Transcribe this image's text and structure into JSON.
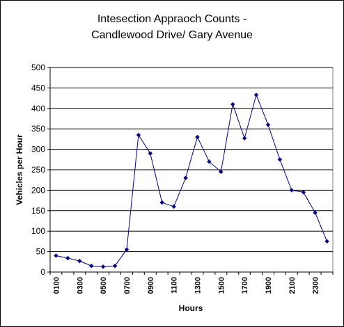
{
  "chart_data": {
    "type": "line",
    "title": [
      "Intesection Appraoch Counts -",
      "Candlewood Drive/ Gary Avenue"
    ],
    "xlabel": "Hours",
    "ylabel": "Vehicles per Hour",
    "ylim": [
      0,
      500
    ],
    "y_ticks": [
      "0",
      "50",
      "100",
      "150",
      "200",
      "250",
      "300",
      "350",
      "400",
      "450",
      "500"
    ],
    "x_tick_labels": [
      "0100",
      "0300",
      "0500",
      "0700",
      "0900",
      "1100",
      "1300",
      "1500",
      "1700",
      "1900",
      "2100",
      "2300"
    ],
    "grid": "horizontal",
    "legend": "none",
    "series": [
      {
        "color": "#000080",
        "x": [
          "0100",
          "0200",
          "0300",
          "0400",
          "0500",
          "0600",
          "0700",
          "0800",
          "0900",
          "1000",
          "1100",
          "1200",
          "1300",
          "1400",
          "1500",
          "1600",
          "1700",
          "1800",
          "1900",
          "2000",
          "2100",
          "2200",
          "2300",
          "2400"
        ],
        "values": [
          40,
          34,
          27,
          15,
          13,
          15,
          55,
          335,
          290,
          170,
          160,
          230,
          330,
          270,
          245,
          410,
          327,
          433,
          360,
          275,
          200,
          195,
          145,
          75
        ]
      }
    ]
  }
}
